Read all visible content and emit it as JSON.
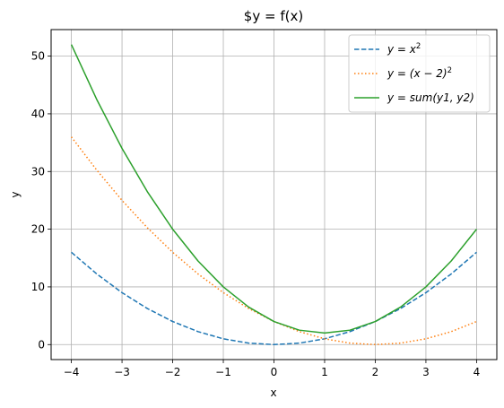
{
  "chart_data": {
    "type": "line",
    "title": "$y = f(x)",
    "xlabel": "x",
    "ylabel": "y",
    "xlim": [
      -4.4,
      4.4
    ],
    "ylim": [
      -2.6,
      54.6
    ],
    "xticks": [
      -4,
      -3,
      -2,
      -1,
      0,
      1,
      2,
      3,
      4
    ],
    "xtick_labels": [
      "−4",
      "−3",
      "−2",
      "−1",
      "0",
      "1",
      "2",
      "3",
      "4"
    ],
    "yticks": [
      0,
      10,
      20,
      30,
      40,
      50
    ],
    "ytick_labels": [
      "0",
      "10",
      "20",
      "30",
      "40",
      "50"
    ],
    "grid": true,
    "legend_position": "top-right",
    "series": [
      {
        "name": "y = x²",
        "legend": {
          "base": "y = x",
          "sup": "2"
        },
        "color": "#1f77b4",
        "linestyle": "dashed",
        "x": [
          -4,
          -3.5,
          -3,
          -2.5,
          -2,
          -1.5,
          -1,
          -0.5,
          0,
          0.5,
          1,
          1.5,
          2,
          2.5,
          3,
          3.5,
          4
        ],
        "y": [
          16,
          12.25,
          9,
          6.25,
          4,
          2.25,
          1,
          0.25,
          0,
          0.25,
          1,
          2.25,
          4,
          6.25,
          9,
          12.25,
          16
        ]
      },
      {
        "name": "y = (x − 2)²",
        "legend": {
          "base": "y = (x − 2)",
          "sup": "2"
        },
        "color": "#ff7f0e",
        "linestyle": "dotted",
        "x": [
          -4,
          -3.5,
          -3,
          -2.5,
          -2,
          -1.5,
          -1,
          -0.5,
          0,
          0.5,
          1,
          1.5,
          2,
          2.5,
          3,
          3.5,
          4
        ],
        "y": [
          36,
          30.25,
          25,
          20.25,
          16,
          12.25,
          9,
          6.25,
          4,
          2.25,
          1,
          0.25,
          0,
          0.25,
          1,
          2.25,
          4
        ]
      },
      {
        "name": "y = sum(y1, y2)",
        "legend": {
          "base": "y = sum(y1, y2)",
          "sup": ""
        },
        "color": "#2ca02c",
        "linestyle": "solid",
        "x": [
          -4,
          -3.5,
          -3,
          -2.5,
          -2,
          -1.5,
          -1,
          -0.5,
          0,
          0.5,
          1,
          1.5,
          2,
          2.5,
          3,
          3.5,
          4
        ],
        "y": [
          52,
          42.5,
          34,
          26.5,
          20,
          14.5,
          10,
          6.5,
          4,
          2.5,
          2,
          2.5,
          4,
          6.5,
          10,
          14.5,
          20
        ]
      }
    ]
  }
}
